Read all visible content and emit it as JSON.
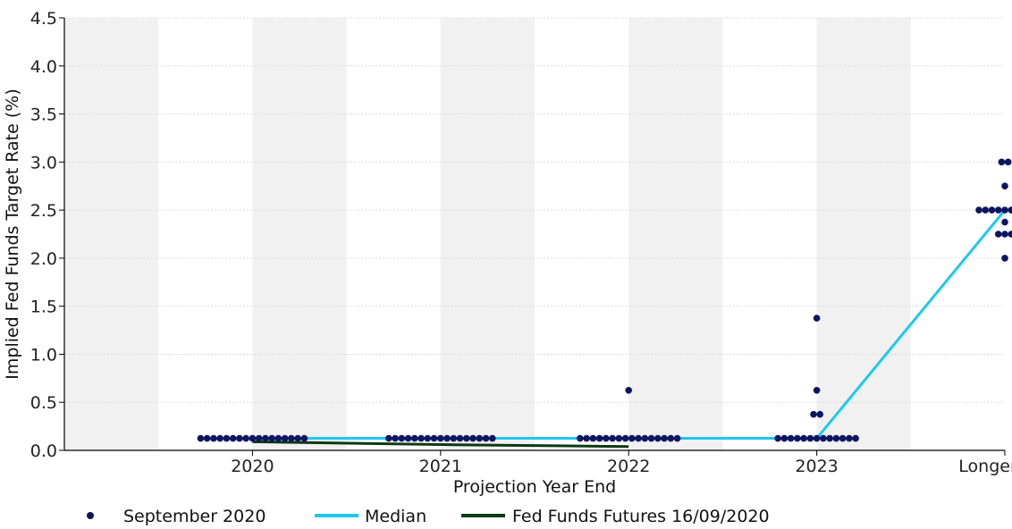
{
  "colors": {
    "dots": "#0b1560",
    "median": "#1ec8f0",
    "futures": "#0b3a12",
    "band": "#f1f1f1",
    "grid": "#dcdcdc"
  },
  "chart_data": {
    "type": "scatter",
    "xlabel": "Projection Year End",
    "ylabel": "Implied Fed Funds Target Rate (%)",
    "ylim": [
      0,
      4.5
    ],
    "y_ticks": [
      "0.0",
      "0.5",
      "1.0",
      "1.5",
      "2.0",
      "2.5",
      "3.0",
      "3.5",
      "4.0",
      "4.5"
    ],
    "categories": [
      "2020",
      "2021",
      "2022",
      "2023",
      "Longer run"
    ],
    "legend_position": "bottom",
    "grid": true,
    "series": [
      {
        "name": "September 2020",
        "kind": "dots",
        "points": [
          {
            "category": "2020",
            "rows": [
              {
                "y": 0.125,
                "count": 17
              }
            ]
          },
          {
            "category": "2021",
            "rows": [
              {
                "y": 0.125,
                "count": 17
              }
            ]
          },
          {
            "category": "2022",
            "rows": [
              {
                "y": 0.125,
                "count": 16
              },
              {
                "y": 0.625,
                "count": 1
              }
            ]
          },
          {
            "category": "2023",
            "rows": [
              {
                "y": 0.125,
                "count": 13
              },
              {
                "y": 0.375,
                "count": 2
              },
              {
                "y": 0.625,
                "count": 1
              },
              {
                "y": 1.375,
                "count": 1
              }
            ]
          },
          {
            "category": "Longer run",
            "rows": [
              {
                "y": 2.0,
                "count": 1
              },
              {
                "y": 2.25,
                "count": 3
              },
              {
                "y": 2.375,
                "count": 1
              },
              {
                "y": 2.5,
                "count": 9
              },
              {
                "y": 2.75,
                "count": 1
              },
              {
                "y": 3.0,
                "count": 2
              }
            ]
          }
        ]
      },
      {
        "name": "Median",
        "kind": "line",
        "values": [
          0.125,
          0.125,
          0.125,
          0.125,
          2.5
        ]
      },
      {
        "name": "Fed Funds Futures 16/09/2020",
        "kind": "line",
        "x": [
          0,
          1,
          2
        ],
        "values": [
          0.09,
          0.06,
          0.04
        ]
      }
    ]
  }
}
